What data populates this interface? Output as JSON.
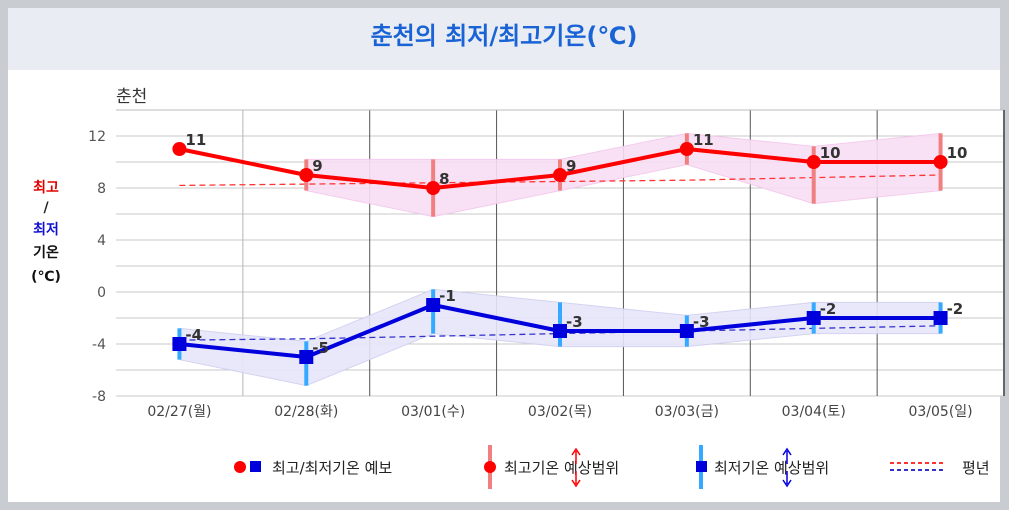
{
  "header": {
    "title": "춘천의 최저/최고기온(℃)"
  },
  "chart_data": {
    "type": "line",
    "subtitle": "춘천",
    "ylabel_parts": [
      {
        "text": "최고",
        "color": "#e00000"
      },
      {
        "text": "/",
        "color": "#222222"
      },
      {
        "text": "최저",
        "color": "#1010d0"
      },
      {
        "text": "기온",
        "color": "#111111"
      },
      {
        "text": "(℃)",
        "color": "#111111"
      }
    ],
    "ylim": [
      -8,
      14
    ],
    "yticks": [
      -8,
      -4,
      0,
      4,
      8,
      12
    ],
    "categories": [
      "02/27(월)",
      "02/28(화)",
      "03/01(수)",
      "03/02(목)",
      "03/03(금)",
      "03/04(토)",
      "03/05(일)"
    ],
    "grid": true,
    "legend_position": "bottom",
    "colors": {
      "max": "#ff0000",
      "min": "#0000dd",
      "max_range": "#f08080",
      "min_range": "#33aaff",
      "max_band": "#f9def4",
      "min_band": "#e6e6fa",
      "normal_max": "#ff3333",
      "normal_min": "#3333cc"
    },
    "series": [
      {
        "name": "최고기온",
        "values": [
          11,
          9,
          8,
          9,
          11,
          10,
          10
        ],
        "range_low": [
          null,
          7.8,
          5.8,
          7.8,
          9.8,
          6.8,
          7.8
        ],
        "range_high": [
          null,
          10.2,
          10.2,
          10.2,
          12.2,
          11.2,
          12.2
        ]
      },
      {
        "name": "최저기온",
        "values": [
          -4,
          -5,
          -1,
          -3,
          -3,
          -2,
          -2
        ],
        "range_low": [
          -5.2,
          -7.2,
          -3.2,
          -4.2,
          -4.2,
          -3.2,
          -3.2
        ],
        "range_high": [
          -2.8,
          -3.8,
          0.2,
          -0.8,
          -1.8,
          -0.8,
          -0.8
        ]
      }
    ],
    "normals": {
      "max": [
        8.2,
        8.3,
        8.4,
        8.5,
        8.6,
        8.8,
        9.0
      ],
      "min": [
        -3.7,
        -3.6,
        -3.4,
        -3.2,
        -3.0,
        -2.8,
        -2.6
      ]
    },
    "legend": [
      {
        "label": "최고/최저기온 예보",
        "icon": "circle-square-marker-icon"
      },
      {
        "label": "최고기온 예상범위",
        "icon": "red-range-bar-icon"
      },
      {
        "label": "최저기온 예상범위",
        "icon": "blue-range-bar-icon"
      },
      {
        "label": "평년",
        "icon": "dashed-line-icon"
      }
    ]
  }
}
